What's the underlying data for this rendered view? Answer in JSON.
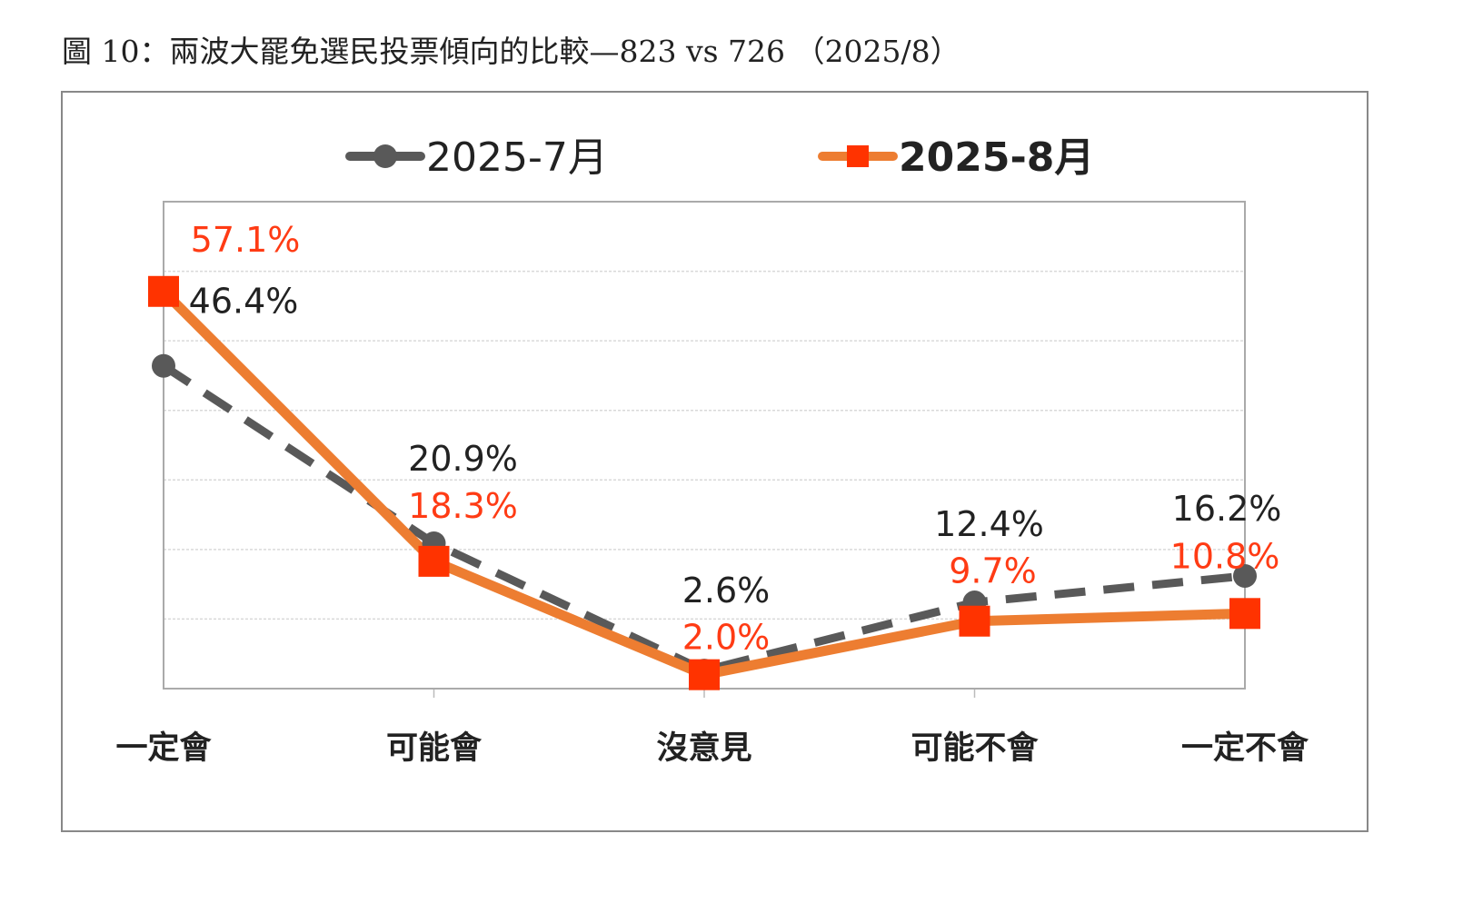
{
  "title": "圖 10：兩波大罷免選民投票傾向的比較—823 vs 726 （2025/8）",
  "chart_data": {
    "type": "line",
    "categories": [
      "一定會",
      "可能會",
      "沒意見",
      "可能不會",
      "一定不會"
    ],
    "series": [
      {
        "name": "2025-7月",
        "values": [
          46.4,
          20.9,
          2.6,
          12.4,
          16.2
        ],
        "labels": [
          "46.4%",
          "20.9%",
          "2.6%",
          "12.4%",
          "16.2%"
        ],
        "color": "#595959",
        "line_style": "dashed",
        "marker": "circle"
      },
      {
        "name": "2025-8月",
        "values": [
          57.1,
          18.3,
          2.0,
          9.7,
          10.8
        ],
        "labels": [
          "57.1%",
          "18.3%",
          "2.0%",
          "9.7%",
          "10.8%"
        ],
        "color": "#ED7D31",
        "marker_color": "#FF3300",
        "label_color": "#FF3B14",
        "line_style": "solid",
        "marker": "square"
      }
    ],
    "ylim": [
      0,
      70
    ],
    "y_ticks_visible": false,
    "grid": true,
    "legend": "top"
  }
}
